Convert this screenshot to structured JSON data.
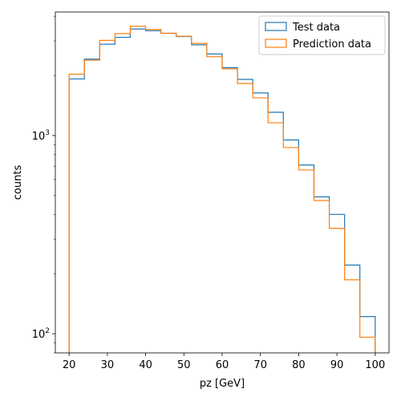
{
  "chart_data": {
    "type": "histogram",
    "xlabel": "pz [GeV]",
    "ylabel": "counts",
    "yscale": "log",
    "xlim": [
      16.4,
      103.6
    ],
    "ylim": [
      80,
      4200
    ],
    "x_ticks": [
      20,
      30,
      40,
      50,
      60,
      70,
      80,
      90,
      100
    ],
    "y_major_ticks": [
      {
        "value": 100,
        "base": "10",
        "exp": "2"
      },
      {
        "value": 1000,
        "base": "10",
        "exp": "3"
      }
    ],
    "y_minor_ticks": [
      80,
      90,
      200,
      300,
      400,
      500,
      600,
      700,
      800,
      900,
      2000,
      3000,
      4000
    ],
    "grid": false,
    "legend_position": "top-right",
    "bin_edges": [
      20,
      24,
      28,
      32,
      36,
      40,
      44,
      48,
      52,
      56,
      60,
      64,
      68,
      72,
      76,
      80,
      84,
      88,
      92,
      96,
      100
    ],
    "series": [
      {
        "name": "Test data",
        "color": "#1f77b4",
        "values": [
          1930,
          2430,
          2890,
          3130,
          3450,
          3380,
          3280,
          3160,
          2870,
          2580,
          2200,
          1920,
          1640,
          1310,
          950,
          710,
          490,
          400,
          222,
          122
        ]
      },
      {
        "name": "Prediction data",
        "color": "#ff7f0e",
        "values": [
          2040,
          2400,
          3020,
          3270,
          3560,
          3430,
          3280,
          3170,
          2920,
          2500,
          2170,
          1830,
          1550,
          1160,
          870,
          670,
          470,
          340,
          187,
          96
        ]
      }
    ]
  }
}
